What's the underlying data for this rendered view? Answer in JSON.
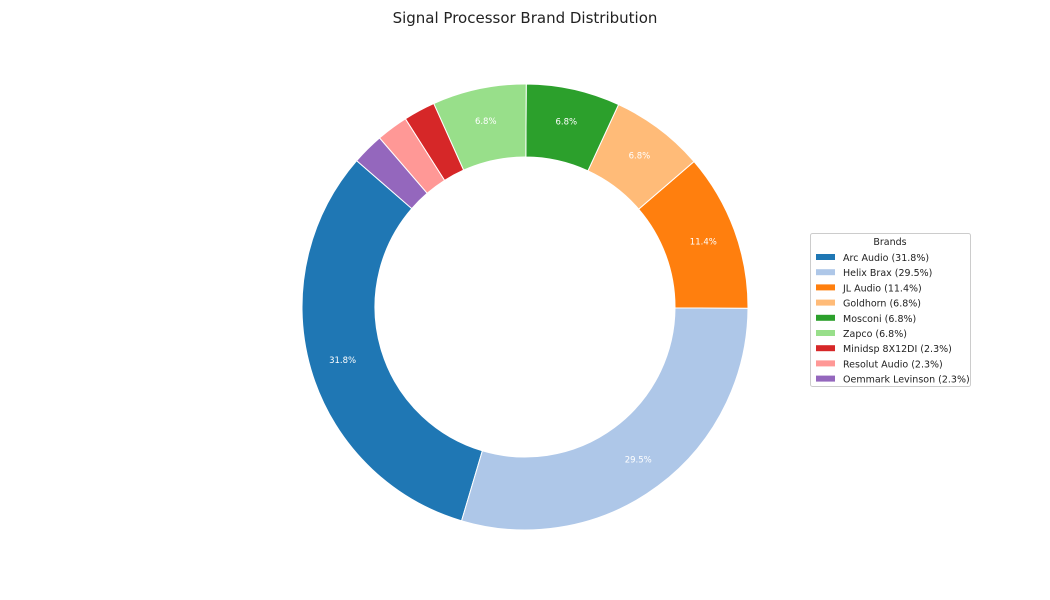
{
  "chart_data": {
    "type": "pie",
    "variant": "donut",
    "title": "Signal Processor Brand Distribution",
    "legend_title": "Brands",
    "legend_position": "right",
    "start_angle_deg": 139,
    "direction": "counterclockwise",
    "slices": [
      {
        "label": "Arc Audio",
        "value": 31.8,
        "pct_label": "31.8%",
        "legend": "Arc Audio (31.8%)",
        "color": "#1f77b4"
      },
      {
        "label": "Helix Brax",
        "value": 29.5,
        "pct_label": "29.5%",
        "legend": "Helix Brax (29.5%)",
        "color": "#aec7e8"
      },
      {
        "label": "JL Audio",
        "value": 11.4,
        "pct_label": "11.4%",
        "legend": "JL Audio (11.4%)",
        "color": "#ff7f0e"
      },
      {
        "label": "Goldhorn",
        "value": 6.8,
        "pct_label": "6.8%",
        "legend": "Goldhorn (6.8%)",
        "color": "#ffbb78"
      },
      {
        "label": "Mosconi",
        "value": 6.8,
        "pct_label": "6.8%",
        "legend": "Mosconi (6.8%)",
        "color": "#2ca02c"
      },
      {
        "label": "Zapco",
        "value": 6.8,
        "pct_label": "6.8%",
        "legend": "Zapco (6.8%)",
        "color": "#98df8a"
      },
      {
        "label": "Minidsp 8X12DI",
        "value": 2.3,
        "pct_label": "",
        "legend": "Minidsp 8X12DI (2.3%)",
        "color": "#d62728"
      },
      {
        "label": "Resolut Audio",
        "value": 2.3,
        "pct_label": "",
        "legend": "Resolut Audio (2.3%)",
        "color": "#ff9896"
      },
      {
        "label": "Oemmark Levinson",
        "value": 2.3,
        "pct_label": "",
        "legend": "Oemmark Levinson (2.3%)",
        "color": "#9467bd"
      }
    ]
  }
}
